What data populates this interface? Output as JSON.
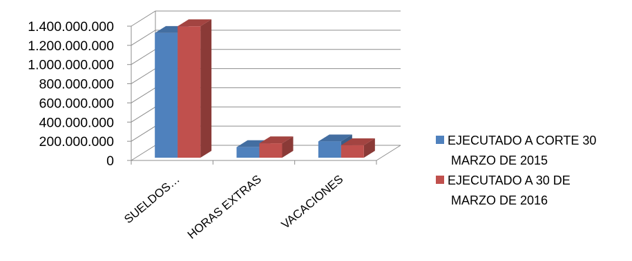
{
  "chart_data": {
    "type": "bar",
    "style": "3d-clustered-column",
    "categories": [
      "SUELDOS…",
      "HORAS EXTRAS",
      "VACACIONES"
    ],
    "series": [
      {
        "name": "EJECUTADO A CORTE 30 MARZO DE 2015",
        "color": "#4F81BD",
        "values": [
          1300000000,
          110000000,
          170000000
        ]
      },
      {
        "name": "EJECUTADO A 30 DE MARZO DE 2016",
        "color": "#C0504D",
        "values": [
          1370000000,
          150000000,
          130000000
        ]
      }
    ],
    "yticks": [
      "0",
      "200.000.000",
      "400.000.000",
      "600.000.000",
      "800.000.000",
      "1.000.000.000",
      "1.200.000.000",
      "1.400.000.000"
    ],
    "ylim": [
      0,
      1400000000
    ],
    "grid": true,
    "legend": {
      "position": "right",
      "entries": [
        {
          "lines": [
            "EJECUTADO A CORTE 30",
            "MARZO DE 2015"
          ]
        },
        {
          "lines": [
            "EJECUTADO A 30 DE",
            "MARZO DE 2016"
          ]
        }
      ]
    }
  }
}
